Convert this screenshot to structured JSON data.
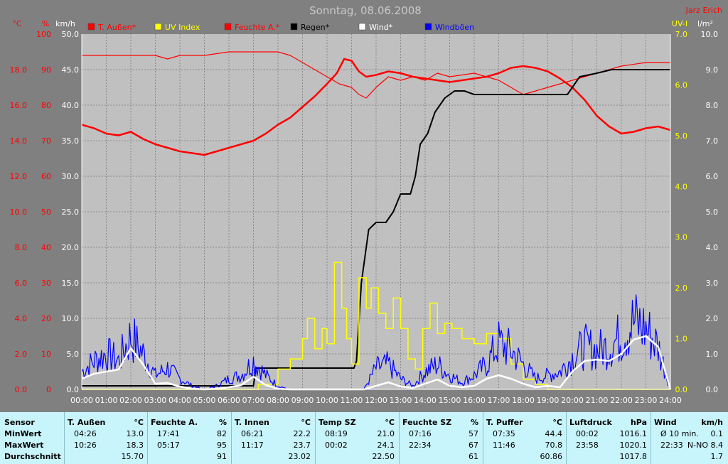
{
  "chart_data": {
    "type": "line",
    "title": "Sonntag, 08.06.2008",
    "author": "Jarz Erich",
    "x_ticks": [
      "00:00",
      "01:00",
      "02:00",
      "03:00",
      "04:00",
      "05:00",
      "06:00",
      "07:00",
      "08:00",
      "09:00",
      "10:00",
      "11:00",
      "12:00",
      "13:00",
      "14:00",
      "15:00",
      "16:00",
      "17:00",
      "18:00",
      "19:00",
      "20:00",
      "21:00",
      "22:00",
      "23:00",
      "24:00"
    ],
    "axes": {
      "temp": {
        "unit": "°C",
        "range": [
          0,
          20
        ],
        "ticks": [
          "0.0",
          "2.0",
          "4.0",
          "6.0",
          "8.0",
          "10.0",
          "12.0",
          "14.0",
          "16.0",
          "18.0"
        ]
      },
      "hum": {
        "unit": "%",
        "range": [
          0,
          100
        ],
        "ticks": [
          "0",
          "10",
          "20",
          "30",
          "40",
          "50",
          "60",
          "70",
          "80",
          "90",
          "100"
        ]
      },
      "wind": {
        "unit": "km/h",
        "range": [
          0,
          50
        ],
        "ticks": [
          "0.0",
          "5.0",
          "10.0",
          "15.0",
          "20.0",
          "25.0",
          "30.0",
          "35.0",
          "40.0",
          "45.0",
          "50.0"
        ]
      },
      "uv": {
        "unit": "UV-I",
        "range": [
          0,
          7
        ],
        "ticks": [
          "0.0",
          "1.0",
          "2.0",
          "3.0",
          "4.0",
          "5.0",
          "6.0",
          "7.0"
        ]
      },
      "rain": {
        "unit": "l/m²",
        "range": [
          0,
          10
        ],
        "ticks": [
          "0.0",
          "1.0",
          "2.0",
          "3.0",
          "4.0",
          "5.0",
          "6.0",
          "7.0",
          "8.0",
          "9.0",
          "10.0"
        ]
      }
    },
    "legend": [
      {
        "name": "T. Außen*",
        "color": "#ff0000"
      },
      {
        "name": "UV Index",
        "color": "#ffff00"
      },
      {
        "name": "Feuchte A.*",
        "color": "#ff0000"
      },
      {
        "name": "Regen*",
        "color": "#000000"
      },
      {
        "name": "Wind*",
        "color": "#ffffff"
      },
      {
        "name": "Windböen",
        "color": "#0000ff"
      }
    ],
    "series": [
      {
        "key": "temp",
        "axis": "temp",
        "color": "#ff0000",
        "width": 2.5,
        "x": [
          0,
          0.5,
          1,
          1.5,
          2,
          2.5,
          3,
          3.5,
          4,
          4.5,
          5,
          5.5,
          6,
          6.5,
          7,
          7.5,
          8,
          8.5,
          9,
          9.5,
          10,
          10.4,
          10.7,
          11,
          11.3,
          11.6,
          12,
          12.5,
          13,
          13.5,
          14,
          14.5,
          15,
          15.5,
          16,
          16.5,
          17,
          17.5,
          18,
          18.5,
          19,
          19.5,
          20,
          20.5,
          21,
          21.5,
          22,
          22.5,
          23,
          23.5,
          24
        ],
        "y": [
          14.9,
          14.7,
          14.4,
          14.3,
          14.5,
          14.1,
          13.8,
          13.6,
          13.4,
          13.3,
          13.2,
          13.4,
          13.6,
          13.8,
          14.0,
          14.4,
          14.9,
          15.3,
          15.9,
          16.5,
          17.2,
          17.8,
          18.6,
          18.5,
          17.9,
          17.6,
          17.7,
          17.9,
          17.8,
          17.6,
          17.5,
          17.4,
          17.3,
          17.4,
          17.5,
          17.6,
          17.8,
          18.1,
          18.2,
          18.1,
          17.9,
          17.5,
          17.0,
          16.3,
          15.4,
          14.8,
          14.4,
          14.5,
          14.7,
          14.8,
          14.6
        ]
      },
      {
        "key": "hum",
        "axis": "hum",
        "color": "#ff0000",
        "width": 1.2,
        "x": [
          0,
          1,
          2,
          3,
          3.5,
          4,
          5,
          6,
          7,
          8,
          8.5,
          9,
          9.5,
          10,
          10.5,
          11,
          11.3,
          11.6,
          12,
          12.5,
          13,
          13.5,
          14,
          14.5,
          15,
          16,
          16.5,
          17,
          17.5,
          18,
          18.5,
          19,
          19.5,
          20,
          20.5,
          21,
          21.5,
          22,
          23,
          24
        ],
        "y": [
          94,
          94,
          94,
          94,
          93,
          94,
          94,
          95,
          95,
          95,
          94,
          92,
          90,
          88,
          86,
          85,
          83,
          82,
          85,
          88,
          87,
          88,
          87,
          89,
          88,
          89,
          88,
          87,
          85,
          83,
          84,
          85,
          86,
          87,
          88,
          89,
          90,
          91,
          92,
          92
        ]
      },
      {
        "key": "rain",
        "axis": "rain",
        "color": "#000000",
        "width": 2,
        "x": [
          0,
          7,
          7.1,
          11.1,
          11.2,
          11.4,
          11.7,
          12.0,
          12.4,
          12.7,
          13.0,
          13.4,
          13.6,
          13.8,
          14.1,
          14.4,
          14.8,
          15.2,
          15.6,
          16.0,
          19.8,
          20.0,
          20.3,
          21,
          21.6,
          22,
          24
        ],
        "y": [
          0.1,
          0.1,
          0.6,
          0.6,
          0.8,
          3.0,
          4.5,
          4.7,
          4.7,
          5.0,
          5.5,
          5.5,
          6.0,
          6.9,
          7.2,
          7.8,
          8.2,
          8.4,
          8.4,
          8.3,
          8.3,
          8.5,
          8.8,
          8.9,
          9.0,
          9.0,
          9.0
        ]
      },
      {
        "key": "uv",
        "axis": "uv",
        "color": "#ffff00",
        "width": 1.5,
        "step": true,
        "x": [
          0,
          7.2,
          8,
          8.5,
          9,
          9.2,
          9.5,
          9.8,
          10.0,
          10.3,
          10.6,
          10.8,
          11,
          11.3,
          11.6,
          11.8,
          12.1,
          12.4,
          12.7,
          13.0,
          13.3,
          13.6,
          13.9,
          14.2,
          14.5,
          14.8,
          15.1,
          15.5,
          16,
          16.5,
          17,
          17.5,
          18,
          18.5,
          19,
          20,
          24
        ],
        "y": [
          0,
          0.1,
          0.4,
          0.6,
          1.0,
          1.4,
          0.8,
          1.2,
          0.9,
          2.5,
          1.6,
          1.0,
          0.5,
          2.2,
          1.6,
          2.0,
          1.5,
          1.2,
          1.8,
          1.2,
          0.6,
          0.4,
          1.2,
          1.7,
          1.1,
          1.3,
          1.2,
          1.0,
          0.9,
          1.1,
          1.0,
          0.5,
          0.2,
          0.1,
          0,
          0,
          0
        ]
      },
      {
        "key": "gust",
        "axis": "wind",
        "color": "#0000ff",
        "width": 1.2,
        "noisy": true,
        "x": [
          0,
          0.5,
          1,
          1.5,
          2,
          2.5,
          3,
          3.5,
          4,
          4.5,
          5,
          5.5,
          6,
          6.5,
          7,
          7.5,
          8,
          8.5,
          9,
          9.5,
          10,
          10.5,
          11,
          11.5,
          12,
          12.5,
          13,
          13.5,
          14,
          14.5,
          15,
          15.5,
          16,
          16.5,
          17,
          17.5,
          18,
          18.5,
          19,
          19.5,
          20,
          20.5,
          21,
          21.5,
          22,
          22.5,
          23,
          23.5,
          24
        ],
        "y": [
          2.5,
          4,
          5,
          4,
          7.5,
          5,
          2,
          3,
          1.5,
          0.5,
          0,
          0.5,
          1.5,
          2,
          4,
          2,
          0.5,
          0,
          0,
          0,
          0,
          0,
          0,
          0,
          3,
          3.5,
          1.5,
          0.5,
          2.5,
          3.5,
          2,
          1,
          2,
          3.5,
          6.5,
          5.5,
          3.5,
          1.5,
          2,
          2.5,
          4.5,
          6,
          5.5,
          6,
          7.5,
          9.5,
          8.5,
          6,
          0
        ]
      },
      {
        "key": "wind",
        "axis": "wind",
        "color": "#ffffff",
        "width": 2.5,
        "x": [
          0,
          0.5,
          1,
          1.5,
          2,
          2.5,
          3,
          3.5,
          4,
          4.5,
          5,
          5.5,
          6,
          6.5,
          7,
          7.5,
          8,
          8.5,
          9,
          9.5,
          10,
          10.5,
          11,
          11.5,
          12,
          12.5,
          13,
          13.5,
          14,
          14.5,
          15,
          15.5,
          16,
          16.5,
          17,
          17.5,
          18,
          18.5,
          19,
          19.5,
          20,
          20.5,
          21,
          21.5,
          22,
          22.5,
          23,
          23.5,
          24
        ],
        "y": [
          1.5,
          2.2,
          2.5,
          2.8,
          5.8,
          3.5,
          0.8,
          0.9,
          0.4,
          0.1,
          0,
          0.1,
          0.3,
          0.6,
          1.8,
          0.6,
          0.1,
          0,
          0,
          0,
          0,
          0,
          0,
          0,
          0.5,
          1.0,
          0.4,
          0.2,
          0.8,
          1.4,
          0.5,
          0.3,
          0.5,
          1.5,
          2.0,
          1.5,
          0.8,
          0.3,
          0.5,
          0.3,
          2.5,
          4.0,
          4.2,
          4.0,
          5.0,
          7.0,
          7.5,
          6.0,
          0
        ]
      }
    ]
  },
  "table": {
    "row_labels": {
      "sensor": "Sensor",
      "min": "MinWert",
      "max": "MaxWert",
      "avg": "Durchschnitt"
    },
    "columns": [
      {
        "name": "T. Außen",
        "unit": "°C",
        "min_time": "04:26",
        "min_val": "13.0",
        "max_time": "10:26",
        "max_val": "18.3",
        "avg": "15.70"
      },
      {
        "name": "Feuchte A.",
        "unit": "%",
        "min_time": "17:41",
        "min_val": "82",
        "max_time": "05:17",
        "max_val": "95",
        "avg": "91"
      },
      {
        "name": "T. Innen",
        "unit": "°C",
        "min_time": "06:21",
        "min_val": "22.2",
        "max_time": "11:17",
        "max_val": "23.7",
        "avg": "23.02"
      },
      {
        "name": "Temp SZ",
        "unit": "°C",
        "min_time": "08:19",
        "min_val": "21.0",
        "max_time": "00:02",
        "max_val": "24.1",
        "avg": "22.50"
      },
      {
        "name": "Feuchte SZ",
        "unit": "%",
        "min_time": "07:16",
        "min_val": "57",
        "max_time": "22:34",
        "max_val": "67",
        "avg": "61"
      },
      {
        "name": "T. Puffer",
        "unit": "°C",
        "min_time": "07:35",
        "min_val": "44.4",
        "max_time": "11:46",
        "max_val": "70.8",
        "avg": "60.86"
      },
      {
        "name": "Luftdruck",
        "unit": "hPa",
        "min_time": "00:02",
        "min_val": "1016.1",
        "max_time": "23:58",
        "max_val": "1020.1",
        "avg": "1017.8"
      },
      {
        "name": "Wind",
        "unit": "km/h",
        "min_time": "Ø 10 min.",
        "min_val": "0.1",
        "max_time": "22:33",
        "max_val": "N-NO 8.4",
        "avg": "1.7"
      }
    ]
  }
}
